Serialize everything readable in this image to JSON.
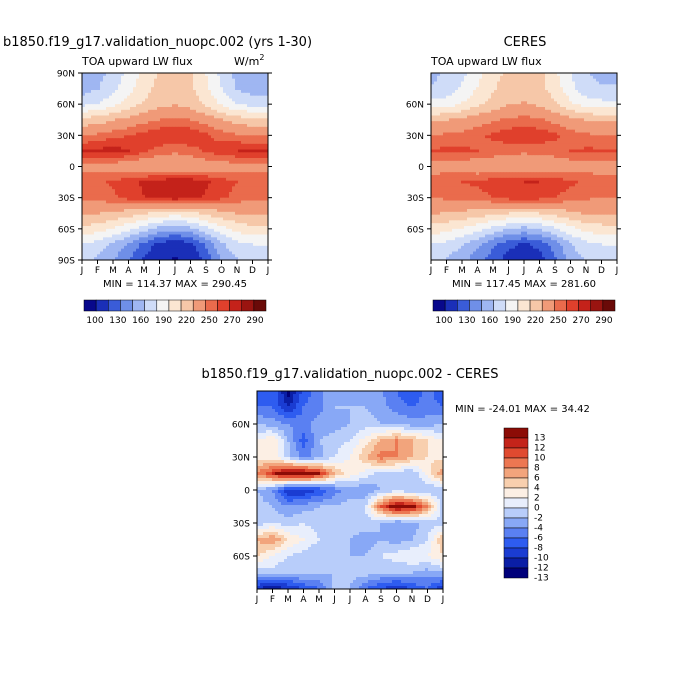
{
  "panels": [
    {
      "id": "model",
      "title": "b1850.f19_g17.validation_nuopc.002 (yrs 1-30)",
      "left_label": "TOA upward LW flux",
      "units_base": "W/m",
      "units_exp": "2",
      "stats": "MIN = 114.37 MAX = 290.45"
    },
    {
      "id": "obs",
      "title": "CERES",
      "left_label": "TOA upward LW flux",
      "stats": "MIN = 117.45 MAX = 281.60"
    },
    {
      "id": "diff",
      "title": "b1850.f19_g17.validation_nuopc.002 - CERES",
      "stats": "MIN = -24.01 MAX =  34.42"
    }
  ],
  "chart_data": [
    {
      "type": "heatmap",
      "title": "b1850.f19_g17.validation_nuopc.002 (yrs 1-30)",
      "subtitle": "TOA upward LW flux",
      "units": "W/m2",
      "x_ticks": [
        "J",
        "F",
        "M",
        "A",
        "M",
        "J",
        "J",
        "A",
        "S",
        "O",
        "N",
        "D",
        "J"
      ],
      "y_ticks": [
        "90N",
        "60N",
        "30N",
        "0",
        "30S",
        "60S",
        "90S"
      ],
      "x": [
        "Jan",
        "Feb",
        "Mar",
        "Apr",
        "May",
        "Jun",
        "Jul",
        "Aug",
        "Sep",
        "Oct",
        "Nov",
        "Dec",
        "Jan"
      ],
      "y": [
        90,
        75,
        60,
        45,
        30,
        15,
        0,
        -15,
        -30,
        -45,
        -60,
        -75,
        -90
      ],
      "values": [
        [
          165,
          170,
          180,
          195,
          210,
          222,
          225,
          222,
          205,
          185,
          170,
          165,
          165
        ],
        [
          168,
          174,
          186,
          200,
          214,
          225,
          228,
          224,
          208,
          190,
          174,
          168,
          168
        ],
        [
          185,
          190,
          200,
          212,
          222,
          230,
          234,
          230,
          218,
          202,
          190,
          185,
          185
        ],
        [
          225,
          228,
          234,
          240,
          246,
          250,
          252,
          250,
          244,
          236,
          228,
          225,
          225
        ],
        [
          250,
          252,
          256,
          260,
          264,
          268,
          270,
          268,
          262,
          256,
          252,
          250,
          250
        ],
        [
          270,
          272,
          276,
          270,
          262,
          256,
          252,
          256,
          262,
          266,
          270,
          270,
          270
        ],
        [
          246,
          244,
          242,
          240,
          238,
          236,
          236,
          238,
          240,
          242,
          244,
          246,
          246
        ],
        [
          255,
          258,
          262,
          266,
          272,
          276,
          280,
          278,
          272,
          266,
          260,
          255,
          255
        ],
        [
          252,
          254,
          258,
          264,
          270,
          274,
          276,
          274,
          268,
          262,
          256,
          252,
          252
        ],
        [
          238,
          236,
          232,
          228,
          222,
          216,
          212,
          216,
          224,
          230,
          236,
          238,
          238
        ],
        [
          216,
          212,
          204,
          194,
          182,
          170,
          164,
          170,
          186,
          200,
          210,
          216,
          216
        ],
        [
          190,
          184,
          172,
          158,
          140,
          124,
          118,
          124,
          148,
          172,
          186,
          190,
          190
        ],
        [
          178,
          172,
          160,
          146,
          128,
          116,
          114,
          116,
          136,
          160,
          174,
          178,
          178
        ]
      ],
      "levels": [
        100,
        115,
        130,
        145,
        160,
        175,
        190,
        205,
        220,
        235,
        250,
        260,
        270,
        280,
        290
      ],
      "colorbar_labels": [
        "100",
        "130",
        "160",
        "190",
        "220",
        "250",
        "270",
        "290"
      ],
      "min": 114.37,
      "max": 290.45
    },
    {
      "type": "heatmap",
      "title": "CERES",
      "subtitle": "TOA upward LW flux",
      "x_ticks": [
        "J",
        "F",
        "M",
        "A",
        "M",
        "J",
        "J",
        "A",
        "S",
        "O",
        "N",
        "D",
        "J"
      ],
      "y_ticks": [
        "60N",
        "30N",
        "0",
        "30S",
        "60S"
      ],
      "x": [
        "Jan",
        "Feb",
        "Mar",
        "Apr",
        "May",
        "Jun",
        "Jul",
        "Aug",
        "Sep",
        "Oct",
        "Nov",
        "Dec",
        "Jan"
      ],
      "y": [
        90,
        75,
        60,
        45,
        30,
        15,
        0,
        -15,
        -30,
        -45,
        -60,
        -75,
        -90
      ],
      "values": [
        [
          172,
          176,
          186,
          200,
          214,
          224,
          228,
          224,
          208,
          190,
          176,
          172,
          172
        ],
        [
          176,
          180,
          192,
          206,
          218,
          228,
          230,
          226,
          212,
          196,
          180,
          176,
          176
        ],
        [
          195,
          198,
          206,
          216,
          226,
          234,
          236,
          232,
          222,
          208,
          198,
          195,
          195
        ],
        [
          232,
          234,
          238,
          244,
          248,
          252,
          254,
          252,
          246,
          240,
          234,
          232,
          232
        ],
        [
          250,
          252,
          254,
          258,
          262,
          266,
          268,
          266,
          262,
          256,
          252,
          250,
          250
        ],
        [
          262,
          262,
          262,
          260,
          256,
          254,
          252,
          254,
          256,
          260,
          262,
          262,
          262
        ],
        [
          244,
          244,
          242,
          240,
          240,
          240,
          240,
          240,
          240,
          242,
          244,
          244,
          244
        ],
        [
          256,
          258,
          260,
          262,
          266,
          268,
          270,
          270,
          266,
          262,
          258,
          256,
          256
        ],
        [
          250,
          252,
          254,
          256,
          260,
          264,
          266,
          264,
          260,
          256,
          252,
          250,
          250
        ],
        [
          236,
          234,
          232,
          228,
          224,
          220,
          218,
          220,
          226,
          232,
          236,
          236,
          236
        ],
        [
          214,
          210,
          204,
          196,
          186,
          176,
          170,
          176,
          188,
          200,
          210,
          214,
          214
        ],
        [
          190,
          186,
          176,
          164,
          148,
          134,
          128,
          134,
          152,
          174,
          186,
          190,
          190
        ],
        [
          178,
          174,
          164,
          152,
          136,
          124,
          120,
          124,
          142,
          164,
          176,
          178,
          178
        ]
      ],
      "levels": [
        100,
        115,
        130,
        145,
        160,
        175,
        190,
        205,
        220,
        235,
        250,
        260,
        270,
        280,
        290
      ],
      "colorbar_labels": [
        "100",
        "130",
        "160",
        "190",
        "220",
        "250",
        "270",
        "290"
      ],
      "min": 117.45,
      "max": 281.6
    },
    {
      "type": "heatmap",
      "title": "b1850.f19_g17.validation_nuopc.002 - CERES",
      "x_ticks": [
        "J",
        "F",
        "M",
        "A",
        "M",
        "J",
        "J",
        "A",
        "S",
        "O",
        "N",
        "D",
        "J"
      ],
      "y_ticks": [
        "60N",
        "30N",
        "0",
        "30S",
        "60S"
      ],
      "x": [
        "Jan",
        "Feb",
        "Mar",
        "Apr",
        "May",
        "Jun",
        "Jul",
        "Aug",
        "Sep",
        "Oct",
        "Nov",
        "Dec",
        "Jan"
      ],
      "y": [
        90,
        75,
        60,
        45,
        30,
        15,
        0,
        -15,
        -30,
        -45,
        -60,
        -75,
        -90
      ],
      "values": [
        [
          -8,
          -6,
          -13,
          -7,
          -5,
          -2,
          -3,
          -2,
          -4,
          -6,
          -8,
          -5,
          -8
        ],
        [
          -6,
          -6,
          -10,
          -6,
          -5,
          -2,
          -2,
          -2,
          -3,
          -5,
          -6,
          -5,
          -6
        ],
        [
          -2,
          -3,
          -4,
          -5,
          -3,
          -3,
          -2,
          -1,
          -2,
          -2,
          -3,
          -3,
          -2
        ],
        [
          2,
          4,
          -2,
          -7,
          -2,
          -1,
          0,
          3,
          6,
          8,
          6,
          4,
          2
        ],
        [
          3,
          3,
          -1,
          -5,
          -3,
          0,
          2,
          6,
          9,
          8,
          6,
          4,
          3
        ],
        [
          8,
          12,
          16,
          16,
          13,
          6,
          3,
          1,
          -1,
          -1,
          -2,
          3,
          8
        ],
        [
          -2,
          -4,
          -10,
          -10,
          -8,
          -5,
          -3,
          -4,
          -2,
          -1,
          -2,
          -2,
          -2
        ],
        [
          -1,
          -2,
          -4,
          -3,
          -2,
          -2,
          -1,
          0,
          10,
          16,
          14,
          8,
          -1
        ],
        [
          -1,
          0,
          -1,
          0,
          -1,
          -1,
          -1,
          -1,
          -2,
          -4,
          -3,
          -1,
          -1
        ],
        [
          6,
          8,
          4,
          2,
          0,
          -2,
          -2,
          -3,
          -2,
          -3,
          -2,
          0,
          6
        ],
        [
          4,
          2,
          0,
          -1,
          -2,
          -2,
          -2,
          -2,
          0,
          1,
          2,
          2,
          4
        ],
        [
          -2,
          -1,
          -2,
          -1,
          -2,
          -2,
          -1,
          -1,
          -2,
          -2,
          -2,
          -3,
          -2
        ],
        [
          -10,
          -12,
          -10,
          -8,
          -6,
          -1,
          -2,
          -6,
          -8,
          -10,
          -8,
          -6,
          -10
        ]
      ],
      "levels": [
        -13,
        -12,
        -10,
        -8,
        -6,
        -4,
        -2,
        0,
        2,
        4,
        6,
        8,
        10,
        12,
        13
      ],
      "colorbar_labels": [
        "13",
        "12",
        "10",
        "8",
        "6",
        "4",
        "2",
        "0",
        "-2",
        "-4",
        "-6",
        "-8",
        "-10",
        "-12",
        "-13"
      ],
      "min": -24.01,
      "max": 34.42
    }
  ],
  "colors": {
    "abs_scale": [
      "#08088c",
      "#1a2fb8",
      "#3a5cd8",
      "#6f8fe8",
      "#9fb6f2",
      "#cfdcf8",
      "#f4f4f4",
      "#fbe6d2",
      "#f6c7a8",
      "#f09a78",
      "#ea6b4c",
      "#e0402c",
      "#c4221a",
      "#9a1410",
      "#6a0a08"
    ],
    "diff_scale": [
      "#00007a",
      "#0a1ea6",
      "#1a3cd2",
      "#2e5cf0",
      "#5a80f2",
      "#88a8f6",
      "#b8cdfa",
      "#e8eefc",
      "#fcefe4",
      "#f8cfae",
      "#f2a47c",
      "#ec7752",
      "#e04a30",
      "#c4241a",
      "#8c0c06"
    ]
  }
}
